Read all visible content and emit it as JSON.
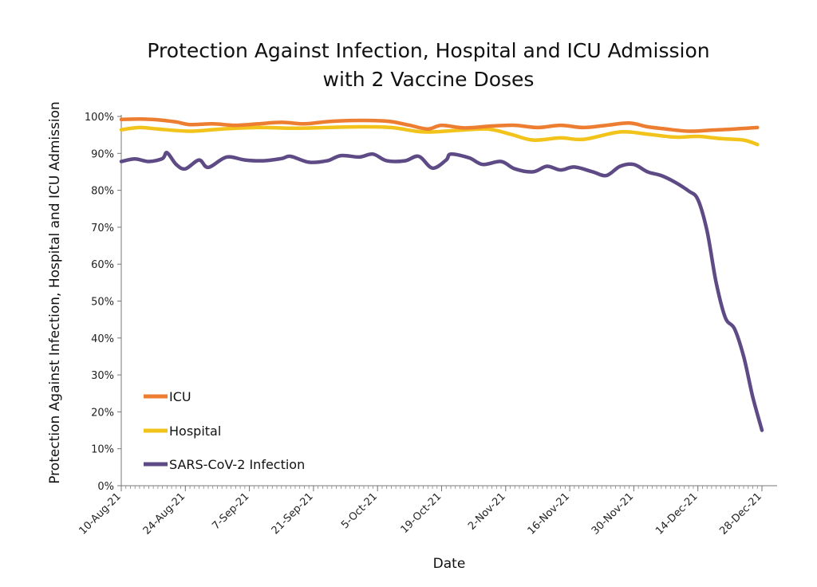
{
  "chart_data": {
    "type": "line",
    "title_line1": "Protection Against Infection, Hospital and ICU Admission",
    "title_line2": "with 2 Vaccine Doses",
    "xlabel": "Date",
    "ylabel": "Protection Against Infection, Hospital and ICU Admission",
    "ylim": [
      0,
      100
    ],
    "yticks": [
      "0%",
      "10%",
      "20%",
      "30%",
      "40%",
      "50%",
      "60%",
      "70%",
      "80%",
      "90%",
      "100%"
    ],
    "x_start": "2021-08-10",
    "x_end": "2021-12-28",
    "x_tick_labels": [
      "10-Aug-21",
      "24-Aug-21",
      "7-Sep-21",
      "21-Sep-21",
      "5-Oct-21",
      "19-Oct-21",
      "2-Nov-21",
      "16-Nov-21",
      "30-Nov-21",
      "14-Dec-21",
      "28-Dec-21"
    ],
    "grid": false,
    "legend_position": "bottom-left",
    "series": [
      {
        "name": "ICU",
        "color": "#ED7D31",
        "points": [
          [
            "2021-08-10",
            99.2
          ],
          [
            "2021-08-14",
            99.3
          ],
          [
            "2021-08-18",
            99.1
          ],
          [
            "2021-08-22",
            98.5
          ],
          [
            "2021-08-25",
            97.8
          ],
          [
            "2021-08-30",
            98.0
          ],
          [
            "2021-09-04",
            97.6
          ],
          [
            "2021-09-09",
            98.0
          ],
          [
            "2021-09-14",
            98.4
          ],
          [
            "2021-09-19",
            98.0
          ],
          [
            "2021-09-24",
            98.6
          ],
          [
            "2021-09-29",
            98.9
          ],
          [
            "2021-10-04",
            98.9
          ],
          [
            "2021-10-08",
            98.6
          ],
          [
            "2021-10-12",
            97.6
          ],
          [
            "2021-10-16",
            96.6
          ],
          [
            "2021-10-19",
            97.6
          ],
          [
            "2021-10-24",
            96.9
          ],
          [
            "2021-10-30",
            97.4
          ],
          [
            "2021-11-04",
            97.6
          ],
          [
            "2021-11-09",
            97.0
          ],
          [
            "2021-11-14",
            97.6
          ],
          [
            "2021-11-19",
            97.0
          ],
          [
            "2021-11-24",
            97.6
          ],
          [
            "2021-11-29",
            98.2
          ],
          [
            "2021-12-03",
            97.2
          ],
          [
            "2021-12-07",
            96.6
          ],
          [
            "2021-12-12",
            96.0
          ],
          [
            "2021-12-17",
            96.3
          ],
          [
            "2021-12-22",
            96.6
          ],
          [
            "2021-12-27",
            97.0
          ]
        ]
      },
      {
        "name": "Hospital",
        "color": "#F2C31A",
        "points": [
          [
            "2021-08-10",
            96.4
          ],
          [
            "2021-08-14",
            97.0
          ],
          [
            "2021-08-18",
            96.6
          ],
          [
            "2021-08-25",
            96.0
          ],
          [
            "2021-09-01",
            96.6
          ],
          [
            "2021-09-09",
            97.0
          ],
          [
            "2021-09-17",
            96.8
          ],
          [
            "2021-09-24",
            97.0
          ],
          [
            "2021-10-01",
            97.2
          ],
          [
            "2021-10-08",
            97.0
          ],
          [
            "2021-10-15",
            95.8
          ],
          [
            "2021-10-22",
            96.2
          ],
          [
            "2021-10-29",
            96.6
          ],
          [
            "2021-11-03",
            95.2
          ],
          [
            "2021-11-08",
            93.6
          ],
          [
            "2021-11-14",
            94.2
          ],
          [
            "2021-11-19",
            93.8
          ],
          [
            "2021-11-27",
            95.8
          ],
          [
            "2021-12-03",
            95.2
          ],
          [
            "2021-12-09",
            94.4
          ],
          [
            "2021-12-14",
            94.6
          ],
          [
            "2021-12-19",
            94.0
          ],
          [
            "2021-12-24",
            93.6
          ],
          [
            "2021-12-27",
            92.4
          ]
        ]
      },
      {
        "name": "SARS-CoV-2 Infection",
        "color": "#5E4B86",
        "points": [
          [
            "2021-08-10",
            87.8
          ],
          [
            "2021-08-13",
            88.5
          ],
          [
            "2021-08-16",
            87.8
          ],
          [
            "2021-08-19",
            88.6
          ],
          [
            "2021-08-20",
            90.2
          ],
          [
            "2021-08-22",
            87.0
          ],
          [
            "2021-08-24",
            85.8
          ],
          [
            "2021-08-27",
            88.2
          ],
          [
            "2021-08-29",
            86.2
          ],
          [
            "2021-09-02",
            89.0
          ],
          [
            "2021-09-06",
            88.2
          ],
          [
            "2021-09-10",
            88.0
          ],
          [
            "2021-09-14",
            88.6
          ],
          [
            "2021-09-16",
            89.2
          ],
          [
            "2021-09-20",
            87.6
          ],
          [
            "2021-09-24",
            88.0
          ],
          [
            "2021-09-27",
            89.4
          ],
          [
            "2021-10-01",
            89.0
          ],
          [
            "2021-10-04",
            89.8
          ],
          [
            "2021-10-07",
            88.0
          ],
          [
            "2021-10-11",
            88.0
          ],
          [
            "2021-10-14",
            89.2
          ],
          [
            "2021-10-17",
            86.0
          ],
          [
            "2021-10-20",
            88.2
          ],
          [
            "2021-10-21",
            89.8
          ],
          [
            "2021-10-25",
            88.8
          ],
          [
            "2021-10-28",
            87.0
          ],
          [
            "2021-11-01",
            87.8
          ],
          [
            "2021-11-04",
            85.8
          ],
          [
            "2021-11-08",
            85.0
          ],
          [
            "2021-11-11",
            86.5
          ],
          [
            "2021-11-14",
            85.5
          ],
          [
            "2021-11-17",
            86.3
          ],
          [
            "2021-11-21",
            85.0
          ],
          [
            "2021-11-24",
            84.0
          ],
          [
            "2021-11-27",
            86.5
          ],
          [
            "2021-11-30",
            87.0
          ],
          [
            "2021-12-03",
            85.0
          ],
          [
            "2021-12-06",
            84.0
          ],
          [
            "2021-12-09",
            82.2
          ],
          [
            "2021-12-12",
            79.8
          ],
          [
            "2021-12-14",
            77.5
          ],
          [
            "2021-12-16",
            69.0
          ],
          [
            "2021-12-18",
            55.0
          ],
          [
            "2021-12-20",
            45.5
          ],
          [
            "2021-12-22",
            42.5
          ],
          [
            "2021-12-24",
            35.0
          ],
          [
            "2021-12-26",
            24.0
          ],
          [
            "2021-12-28",
            15.0
          ]
        ]
      }
    ]
  }
}
